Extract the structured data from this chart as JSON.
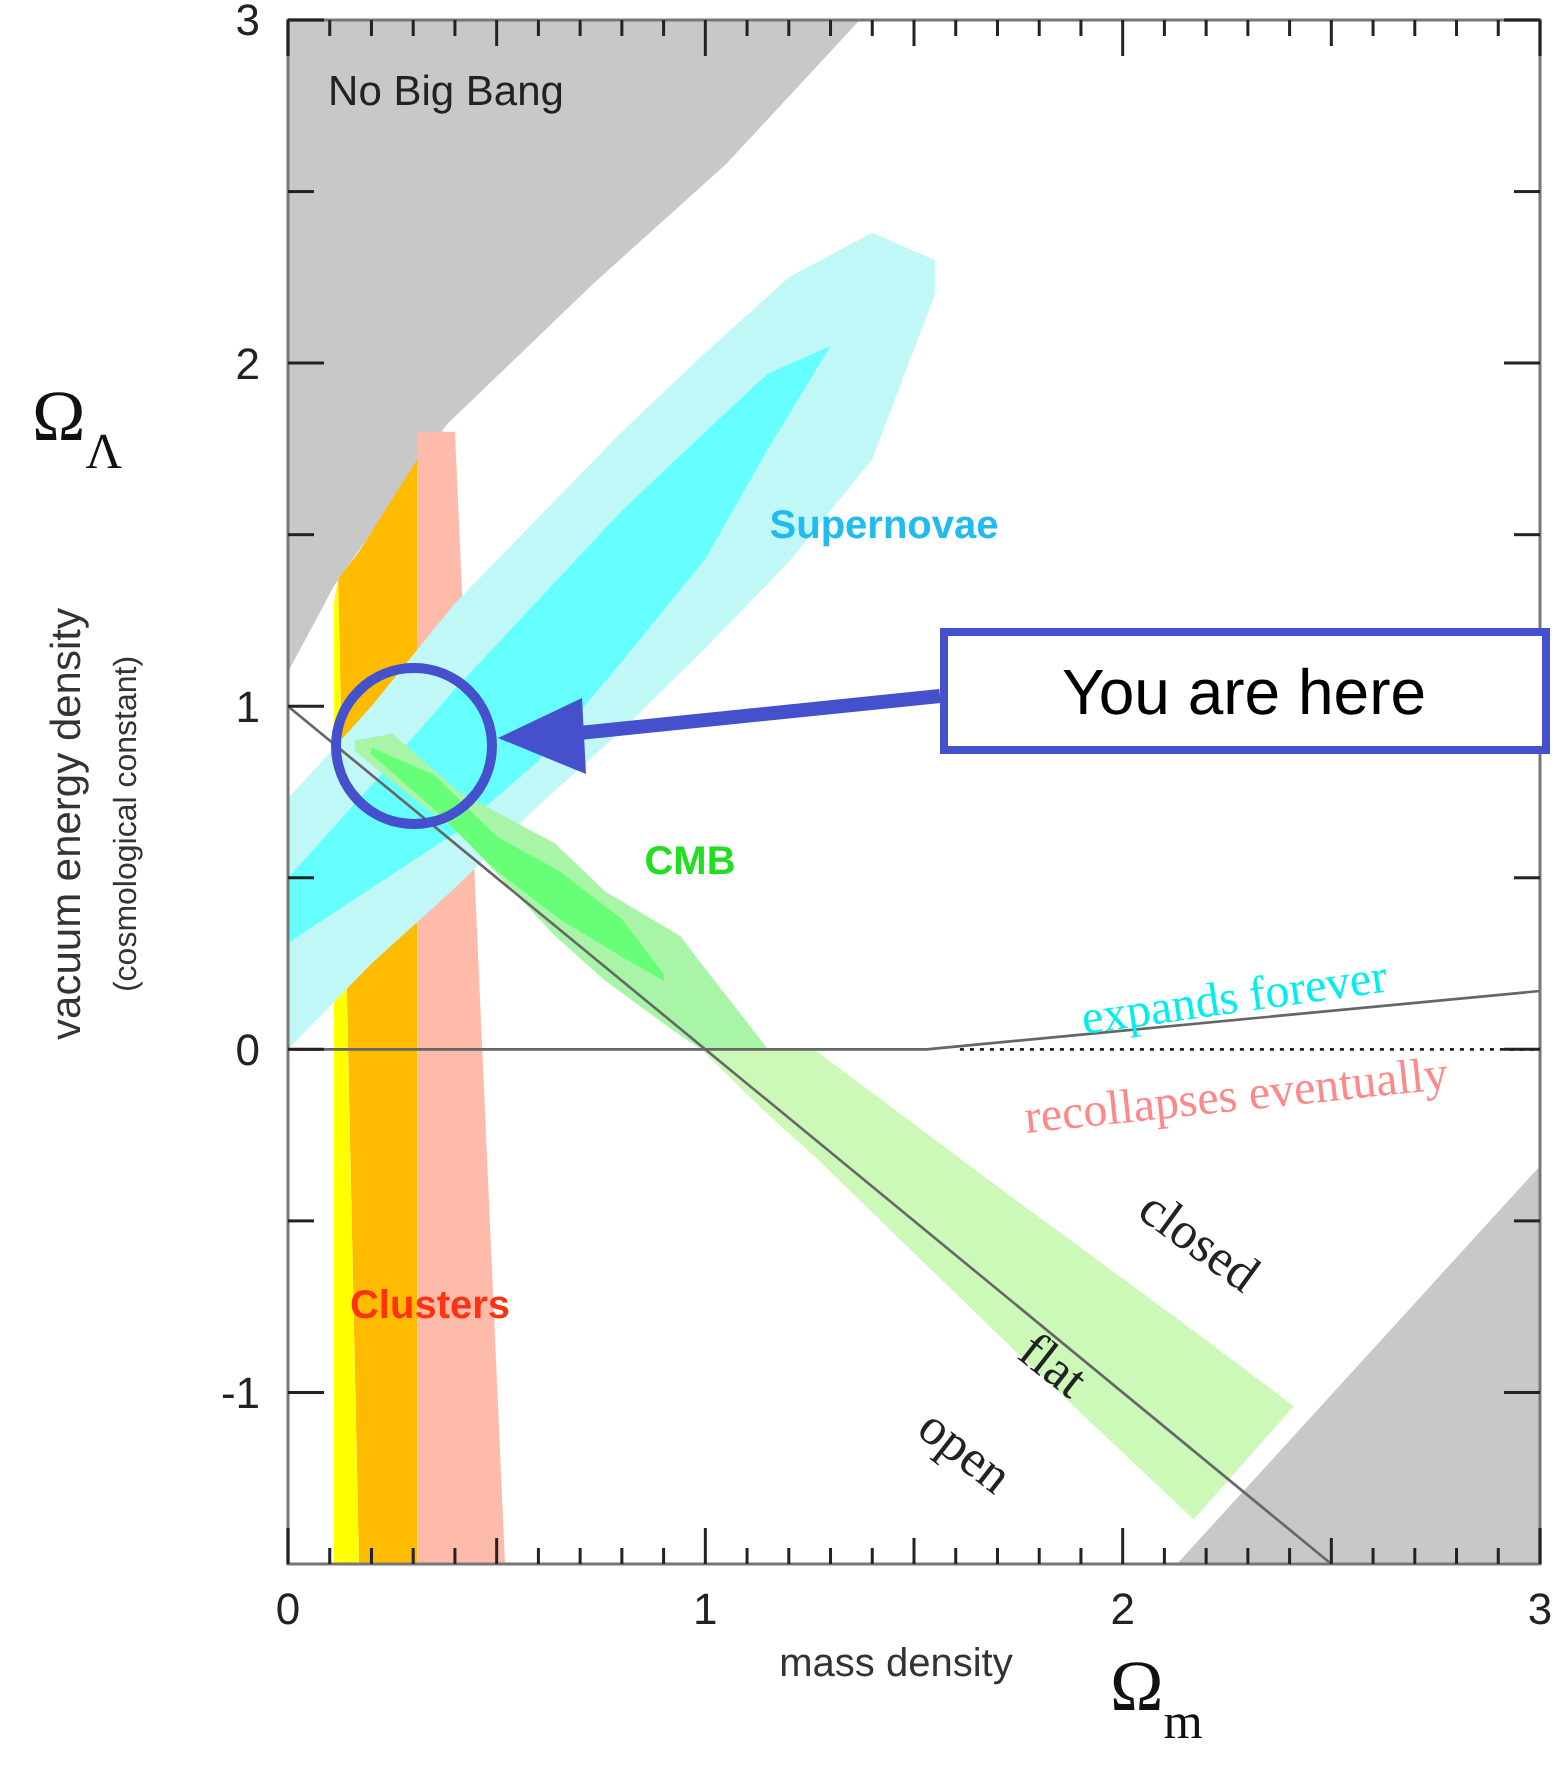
{
  "chart_data": {
    "type": "area",
    "xlabel": "mass density\nΩ$_{m}$",
    "ylabel": "Ω$_{Λ}$\nvacuum energy density\n(cosmological constant)",
    "xlim": [
      0,
      3
    ],
    "ylim": [
      -1.5,
      3
    ],
    "xticks": [
      0,
      {
        "value": 0.1,
        "label": null
      },
      {
        "value": 0.2,
        "label": null
      },
      {
        "value": 0.3,
        "label": null
      },
      {
        "value": 0.4,
        "label": null
      },
      {
        "value": 0.5,
        "label": null
      },
      {
        "value": 0.6,
        "label": null
      },
      {
        "value": 0.7,
        "label": null
      },
      {
        "value": 0.8,
        "label": null
      },
      {
        "value": 0.9,
        "label": null
      },
      1,
      {
        "value": 1.1,
        "label": null
      },
      {
        "value": 1.2,
        "label": null
      },
      {
        "value": 1.3,
        "label": null
      },
      {
        "value": 1.4,
        "label": null
      },
      {
        "value": 1.5,
        "label": null
      },
      {
        "value": 1.6,
        "label": null
      },
      {
        "value": 1.7,
        "label": null
      },
      {
        "value": 1.8,
        "label": null
      },
      {
        "value": 1.9,
        "label": null
      },
      2,
      {
        "value": 2.1,
        "label": null
      },
      {
        "value": 2.2,
        "label": null
      },
      {
        "value": 2.3,
        "label": null
      },
      {
        "value": 2.4,
        "label": null
      },
      {
        "value": 2.5,
        "label": null
      },
      {
        "value": 2.6,
        "label": null
      },
      {
        "value": 2.7,
        "label": null
      },
      {
        "value": 2.8,
        "label": null
      },
      {
        "value": 2.9,
        "label": null
      },
      3
    ],
    "yticks": [
      -1,
      {
        "value": -0.5,
        "label": null
      },
      0,
      {
        "value": 0.5,
        "label": null
      },
      1,
      {
        "value": 1.5,
        "label": null
      },
      2,
      {
        "value": 2.5,
        "label": null
      },
      3
    ],
    "series": [
      {
        "color": "#c8c8c8",
        "x": [
          0,
          0.11,
          0.38,
          0.73,
          1.05,
          1.37
        ],
        "values": [
          null,
          null,
          null,
          null,
          null,
          null
        ],
        "upper": [
          3,
          3,
          3,
          3,
          3,
          3
        ],
        "lower": [
          1.1,
          1.35,
          1.82,
          2.23,
          2.58,
          3
        ]
      },
      {
        "color": "#c8c8c8",
        "x": [
          2.13,
          3
        ],
        "values": [
          null,
          null
        ],
        "upper": [
          -1.5,
          -0.34
        ],
        "lower": [
          -1.5,
          -1.5
        ]
      },
      {
        "color": "#ffbb00",
        "x": [
          0.12,
          0.17,
          0.31
        ],
        "values": [
          null,
          null,
          null
        ],
        "upper": [
          1.37,
          1.45,
          1.72
        ],
        "lower": [
          1.37,
          -1.5,
          -1.5
        ]
      },
      {
        "color": "#ffbbaa",
        "x": [
          0.31,
          0.4,
          0.52
        ],
        "values": [
          null,
          null,
          null
        ],
        "upper": [
          1.8,
          1.8,
          -1.5
        ],
        "lower": [
          -1.5,
          -1.5,
          -1.5
        ]
      },
      {
        "color": "#ffff00",
        "x": [
          0.11,
          0.12,
          0.17
        ],
        "values": [
          null,
          null,
          null
        ],
        "upper": [
          1.3,
          1.37,
          -1.5
        ],
        "lower": [
          -1.5,
          -1.5,
          -1.5
        ]
      },
      {
        "color": "#c0f8f8",
        "x": [
          0,
          0.2,
          0.4,
          0.6,
          0.8,
          1.0,
          1.2,
          1.4,
          1.55
        ],
        "values": [
          null,
          null,
          null,
          null,
          null,
          null,
          null,
          null,
          null
        ],
        "upper": [
          0.73,
          1.0,
          1.3,
          1.55,
          1.8,
          2.03,
          2.25,
          2.38,
          2.3
        ],
        "lower": [
          0.0,
          0.25,
          0.47,
          0.71,
          0.93,
          1.17,
          1.42,
          1.72,
          2.2
        ]
      },
      {
        "color": "#66ffff",
        "x": [
          0,
          0.2,
          0.4,
          0.6,
          0.8,
          1.0,
          1.15,
          1.3
        ],
        "values": [
          null,
          null,
          null,
          null,
          null,
          null,
          null,
          null
        ],
        "upper": [
          0.5,
          0.77,
          1.05,
          1.31,
          1.57,
          1.8,
          1.97,
          2.05
        ],
        "lower": [
          0.31,
          0.47,
          0.63,
          0.84,
          1.13,
          1.43,
          1.75,
          2.05
        ]
      },
      {
        "color": "#ccf9b8",
        "x": [
          0.99,
          1.15,
          1.26,
          1.7,
          2.17,
          2.41
        ],
        "values": [
          null,
          null,
          null,
          null,
          null,
          null
        ],
        "upper": [
          0.0,
          0.0,
          0.0,
          -0.4,
          -0.82,
          -1.04
        ],
        "lower": [
          0.0,
          -0.19,
          -0.31,
          -0.83,
          -1.37,
          -1.04
        ]
      },
      {
        "color": "#a8f5a8",
        "x": [
          0.16,
          0.25,
          0.41,
          0.64,
          0.76,
          0.94,
          0.99,
          1.08,
          1.15
        ],
        "values": [
          null,
          null,
          null,
          null,
          null,
          null,
          null,
          null,
          null
        ],
        "upper": [
          0.9,
          0.92,
          0.75,
          0.6,
          0.46,
          0.33,
          0.25,
          0.11,
          0.0
        ],
        "lower": [
          0.87,
          0.78,
          0.63,
          0.33,
          0.2,
          0.04,
          0.0,
          0.0,
          0.0
        ]
      },
      {
        "color": "#66ff77",
        "x": [
          0.2,
          0.35,
          0.5,
          0.65,
          0.8,
          0.9
        ],
        "values": [
          null,
          null,
          null,
          null,
          null,
          null
        ],
        "upper": [
          0.88,
          0.8,
          0.62,
          0.52,
          0.38,
          0.22
        ],
        "lower": [
          0.86,
          0.7,
          0.52,
          0.38,
          0.27,
          0.2
        ]
      },
      {
        "type": "line",
        "color": "#666666",
        "x": [
          0,
          2.5
        ],
        "values": [
          1,
          -1.5
        ]
      },
      {
        "type": "line",
        "color": "#666666",
        "x": [
          0,
          1.53,
          3
        ],
        "values": [
          0,
          0,
          0.17
        ]
      },
      {
        "type": "line",
        "color": "#222222",
        "line_style": "dotted",
        "x": [
          1.61,
          3
        ],
        "values": [
          0,
          0
        ]
      }
    ],
    "annotations": [
      "No Big Bang",
      "Supernovae",
      "CMB",
      "Clusters",
      "expands forever",
      "recollapses eventually",
      "closed",
      "flat",
      "open",
      "You are here"
    ]
  }
}
